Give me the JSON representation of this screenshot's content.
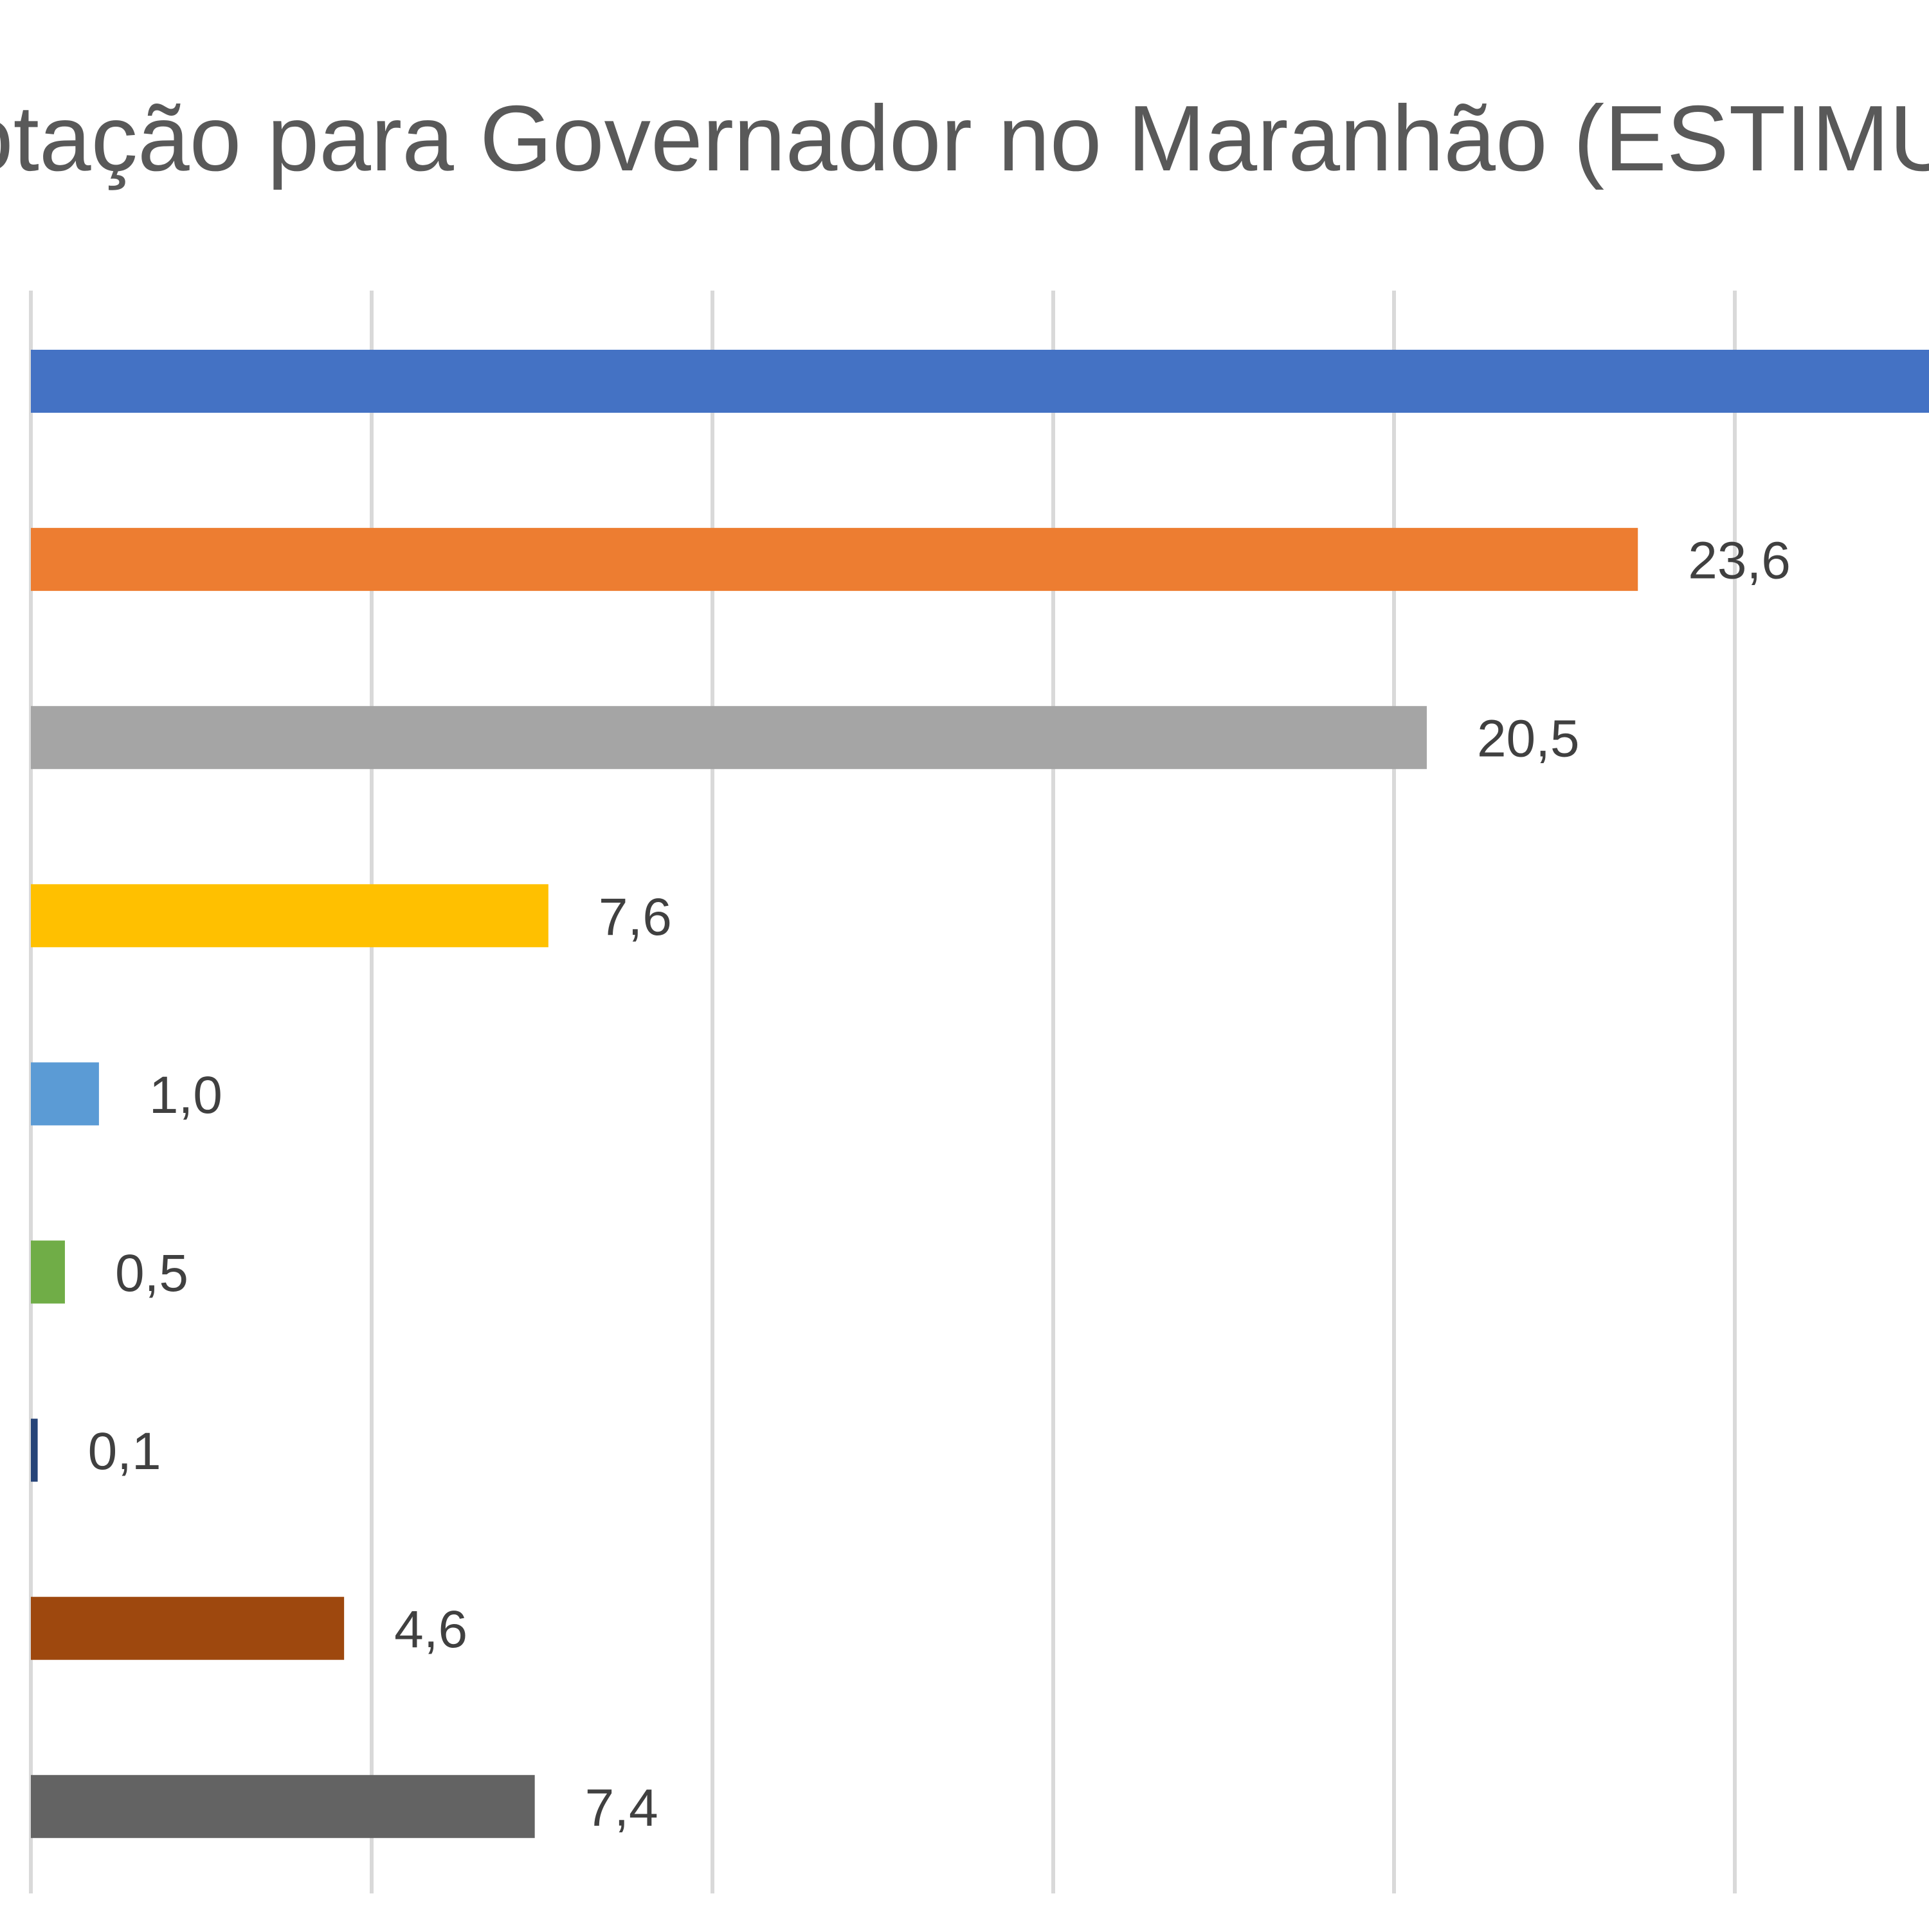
{
  "chart_data": {
    "type": "bar",
    "orientation": "horizontal",
    "title": "otação para Governador no Maranhão (ESTIMUL",
    "xlabel": "",
    "ylabel": "",
    "xlim": [
      0,
      28
    ],
    "grid": true,
    "legend": "none",
    "bars": [
      {
        "value": null,
        "label": "",
        "color": "#4472C4"
      },
      {
        "value": 23.6,
        "label": "23,6",
        "color": "#ED7D31"
      },
      {
        "value": 20.5,
        "label": "20,5",
        "color": "#A5A5A5"
      },
      {
        "value": 7.6,
        "label": "7,6",
        "color": "#FFC000"
      },
      {
        "value": 1.0,
        "label": "1,0",
        "color": "#5B9BD5"
      },
      {
        "value": 0.5,
        "label": "0,5",
        "color": "#70AD47"
      },
      {
        "value": 0.1,
        "label": "0,1",
        "color": "#264478"
      },
      {
        "value": 4.6,
        "label": "4,6",
        "color": "#9E480E"
      },
      {
        "value": 7.4,
        "label": "7,4",
        "color": "#636363"
      }
    ]
  },
  "colors": {
    "title_text": "#595959",
    "label_text": "#404040",
    "grid_line": "#D9D9D9"
  }
}
